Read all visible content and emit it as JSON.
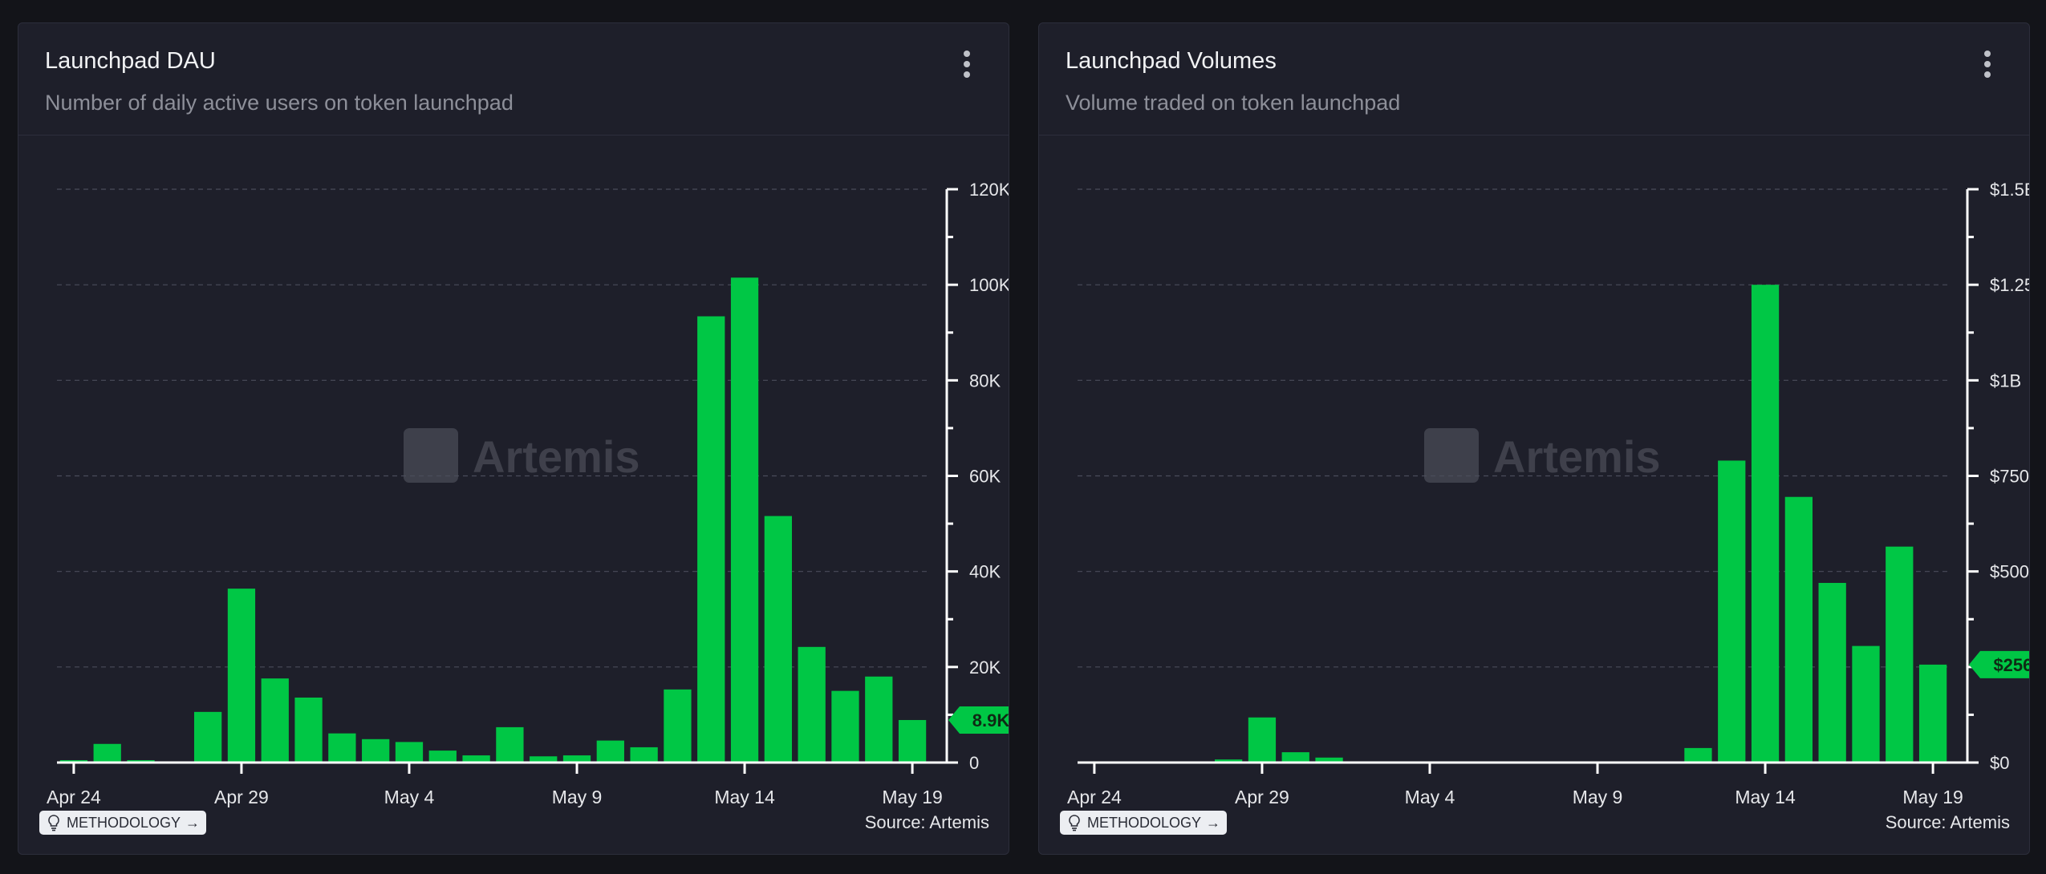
{
  "colors": {
    "bar": "#00c745",
    "background": "#1e1f2a",
    "grid": "#4a4c5a",
    "axis": "#ffffff"
  },
  "charts": [
    {
      "id": "dau",
      "title": "Launchpad DAU",
      "subtitle": "Number of daily active users on token launchpad",
      "methodology_label": "METHODOLOGY",
      "source_label": "Source: Artemis",
      "watermark": "Artemis",
      "menu_icon": "kebab-menu-icon"
    },
    {
      "id": "volumes",
      "title": "Launchpad Volumes",
      "subtitle": "Volume traded on token launchpad",
      "methodology_label": "METHODOLOGY",
      "source_label": "Source: Artemis",
      "watermark": "Artemis",
      "menu_icon": "kebab-menu-icon"
    }
  ],
  "chart_data": [
    {
      "type": "bar",
      "title": "Launchpad DAU",
      "x": [
        "Apr 24",
        "Apr 25",
        "Apr 26",
        "Apr 27",
        "Apr 28",
        "Apr 29",
        "Apr 30",
        "May 1",
        "May 2",
        "May 3",
        "May 4",
        "May 5",
        "May 6",
        "May 7",
        "May 8",
        "May 9",
        "May 10",
        "May 11",
        "May 12",
        "May 13",
        "May 14",
        "May 15",
        "May 16",
        "May 17",
        "May 18",
        "May 19"
      ],
      "values": [
        500,
        3900,
        500,
        0,
        10600,
        36400,
        17600,
        13600,
        6100,
        4900,
        4300,
        2500,
        1500,
        7400,
        1300,
        1500,
        4600,
        3200,
        15300,
        93400,
        101500,
        51600,
        24200,
        15000,
        18000,
        8900
      ],
      "x_tick_labels": [
        "Apr 24",
        "Apr 29",
        "May 4",
        "May 9",
        "May 14",
        "May 19"
      ],
      "y_ticks": [
        0,
        20000,
        40000,
        60000,
        80000,
        100000,
        120000
      ],
      "y_tick_labels": [
        "0",
        "20K",
        "40K",
        "60K",
        "80K",
        "100K",
        "120K"
      ],
      "ylim": [
        0,
        120000
      ],
      "last_value_label": "8.9K",
      "grid": true
    },
    {
      "type": "bar",
      "title": "Launchpad Volumes",
      "x": [
        "Apr 24",
        "Apr 25",
        "Apr 26",
        "Apr 27",
        "Apr 28",
        "Apr 29",
        "Apr 30",
        "May 1",
        "May 2",
        "May 3",
        "May 4",
        "May 5",
        "May 6",
        "May 7",
        "May 8",
        "May 9",
        "May 10",
        "May 11",
        "May 12",
        "May 13",
        "May 14",
        "May 15",
        "May 16",
        "May 17",
        "May 18",
        "May 19"
      ],
      "values": [
        0,
        0,
        0,
        0,
        8000000,
        118000000,
        27000000,
        13000000,
        0,
        0,
        0,
        0,
        0,
        0,
        0,
        0,
        0,
        3000000,
        38000000,
        790000000,
        1250000000,
        695000000,
        470000000,
        305000000,
        565000000,
        256200000
      ],
      "x_tick_labels": [
        "Apr 24",
        "Apr 29",
        "May 4",
        "May 9",
        "May 14",
        "May 19"
      ],
      "y_ticks": [
        0,
        250000000,
        500000000,
        750000000,
        1000000000,
        1250000000,
        1500000000
      ],
      "y_tick_labels": [
        "$0",
        "$250M",
        "$500M",
        "$750M",
        "$1B",
        "$1.25B",
        "$1.5B"
      ],
      "ylim": [
        0,
        1500000000
      ],
      "last_value_label": "$256.2M",
      "grid": true
    }
  ]
}
